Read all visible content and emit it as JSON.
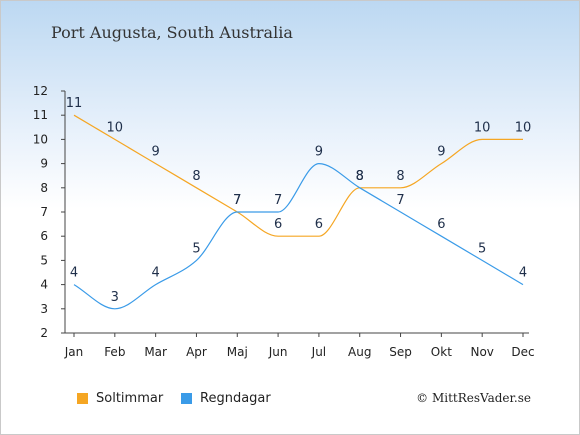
{
  "chart_data": {
    "type": "line",
    "title": "Port Augusta, South Australia",
    "categories": [
      "Jan",
      "Feb",
      "Mar",
      "Apr",
      "Maj",
      "Jun",
      "Jul",
      "Aug",
      "Sep",
      "Okt",
      "Nov",
      "Dec"
    ],
    "ylim": [
      2,
      12
    ],
    "yticks": [
      2,
      3,
      4,
      5,
      6,
      7,
      8,
      9,
      10,
      11,
      12
    ],
    "series": [
      {
        "name": "Soltimmar",
        "color": "#f5a623",
        "values": [
          11,
          10,
          9,
          8,
          7,
          6,
          6,
          8,
          8,
          9,
          10,
          10
        ]
      },
      {
        "name": "Regndagar",
        "color": "#3a9be8",
        "values": [
          4,
          3,
          4,
          5,
          7,
          7,
          9,
          8,
          7,
          6,
          5,
          4
        ]
      }
    ],
    "grid": false,
    "legend_position": "bottom-left"
  },
  "legend": {
    "items": [
      {
        "label": "Soltimmar",
        "color": "#f5a623"
      },
      {
        "label": "Regndagar",
        "color": "#3a9be8"
      }
    ]
  },
  "credit": "© MittResVader.se"
}
